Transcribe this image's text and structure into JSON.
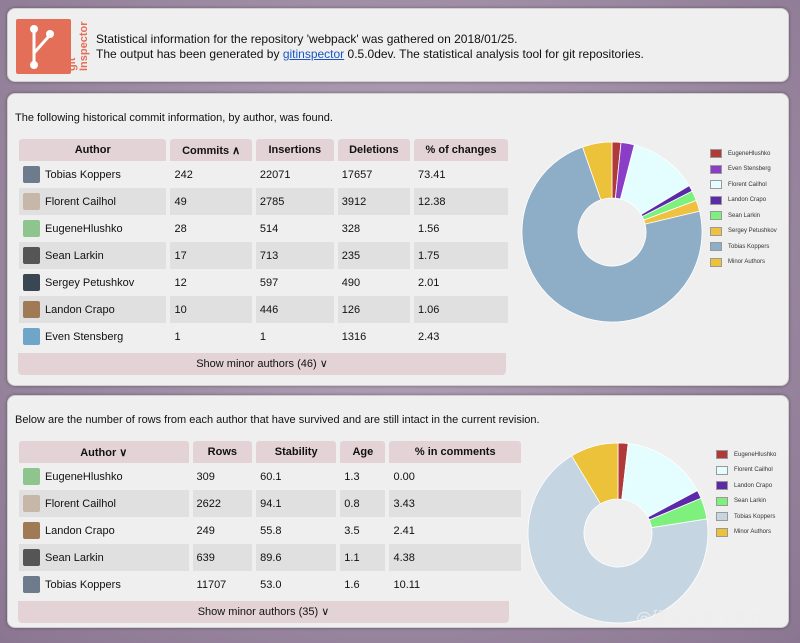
{
  "header": {
    "logo_word": "git Inspector",
    "line1": "Statistical information for the repository 'webpack' was gathered on 2018/01/25.",
    "line2_prefix": "The output has been generated by ",
    "line2_link": "gitinspector",
    "line2_suffix": " 0.5.0dev. The statistical analysis tool for git repositories."
  },
  "history": {
    "intro": "The following historical commit information, by author, was found.",
    "columns": [
      "Author",
      "Commits ∧",
      "Insertions",
      "Deletions",
      "% of changes"
    ],
    "rows": [
      {
        "author": "Tobias Koppers",
        "avatar": "#6e7b8c",
        "commits": "242",
        "insertions": "22071",
        "deletions": "17657",
        "pct": "73.41"
      },
      {
        "author": "Florent Cailhol",
        "avatar": "#c7b7a9",
        "commits": "49",
        "insertions": "2785",
        "deletions": "3912",
        "pct": "12.38"
      },
      {
        "author": "EugeneHlushko",
        "avatar": "#8ec48e",
        "commits": "28",
        "insertions": "514",
        "deletions": "328",
        "pct": "1.56"
      },
      {
        "author": "Sean Larkin",
        "avatar": "#555555",
        "commits": "17",
        "insertions": "713",
        "deletions": "235",
        "pct": "1.75"
      },
      {
        "author": "Sergey Petushkov",
        "avatar": "#3a4652",
        "commits": "12",
        "insertions": "597",
        "deletions": "490",
        "pct": "2.01"
      },
      {
        "author": "Landon Crapo",
        "avatar": "#a07a55",
        "commits": "10",
        "insertions": "446",
        "deletions": "126",
        "pct": "1.06"
      },
      {
        "author": "Even Stensberg",
        "avatar": "#6fa6c8",
        "commits": "1",
        "insertions": "1",
        "deletions": "1316",
        "pct": "2.43"
      }
    ],
    "show_more": "Show minor authors (46) ∨"
  },
  "blame": {
    "intro": "Below are the number of rows from each author that have survived and are still intact in the current revision.",
    "columns": [
      "Author ∨",
      "Rows",
      "Stability",
      "Age",
      "% in comments"
    ],
    "rows": [
      {
        "author": "EugeneHlushko",
        "avatar": "#8ec48e",
        "rows": "309",
        "stability": "60.1",
        "age": "1.3",
        "comments": "0.00"
      },
      {
        "author": "Florent Cailhol",
        "avatar": "#c7b7a9",
        "rows": "2622",
        "stability": "94.1",
        "age": "0.8",
        "comments": "3.43"
      },
      {
        "author": "Landon Crapo",
        "avatar": "#a07a55",
        "rows": "249",
        "stability": "55.8",
        "age": "3.5",
        "comments": "2.41"
      },
      {
        "author": "Sean Larkin",
        "avatar": "#555555",
        "rows": "639",
        "stability": "89.6",
        "age": "1.1",
        "comments": "4.38"
      },
      {
        "author": "Tobias Koppers",
        "avatar": "#6e7b8c",
        "rows": "11707",
        "stability": "53.0",
        "age": "1.6",
        "comments": "10.11"
      }
    ],
    "show_more": "Show minor authors (35) ∨"
  },
  "chart_data": [
    {
      "type": "pie",
      "labels": [
        "EugeneHlushko",
        "Even Stensberg",
        "Florent Cailhol",
        "Landon Crapo",
        "Sean Larkin",
        "Sergey Petushkov",
        "Tobias Koppers",
        "Minor Authors"
      ],
      "values": [
        1.6,
        2.4,
        12.4,
        1.1,
        1.8,
        2.0,
        73.4,
        5.3
      ],
      "colors": [
        "#b03a3a",
        "#8a3ec8",
        "#e4fdff",
        "#5a2aa8",
        "#7df07d",
        "#f0c040",
        "#8eaec8",
        "#ecc23a"
      ]
    },
    {
      "type": "pie",
      "labels": [
        "EugeneHlushko",
        "Florent Cailhol",
        "Landon Crapo",
        "Sean Larkin",
        "Tobias Koppers",
        "Minor Authors"
      ],
      "values": [
        1.8,
        15.4,
        1.5,
        3.8,
        68.9,
        8.6
      ],
      "colors": [
        "#b03a3a",
        "#e4fdff",
        "#5a2aa8",
        "#7df07d",
        "#c5d5e2",
        "#ecc23a"
      ]
    }
  ],
  "watermark": "@稀土掘金技术社区"
}
